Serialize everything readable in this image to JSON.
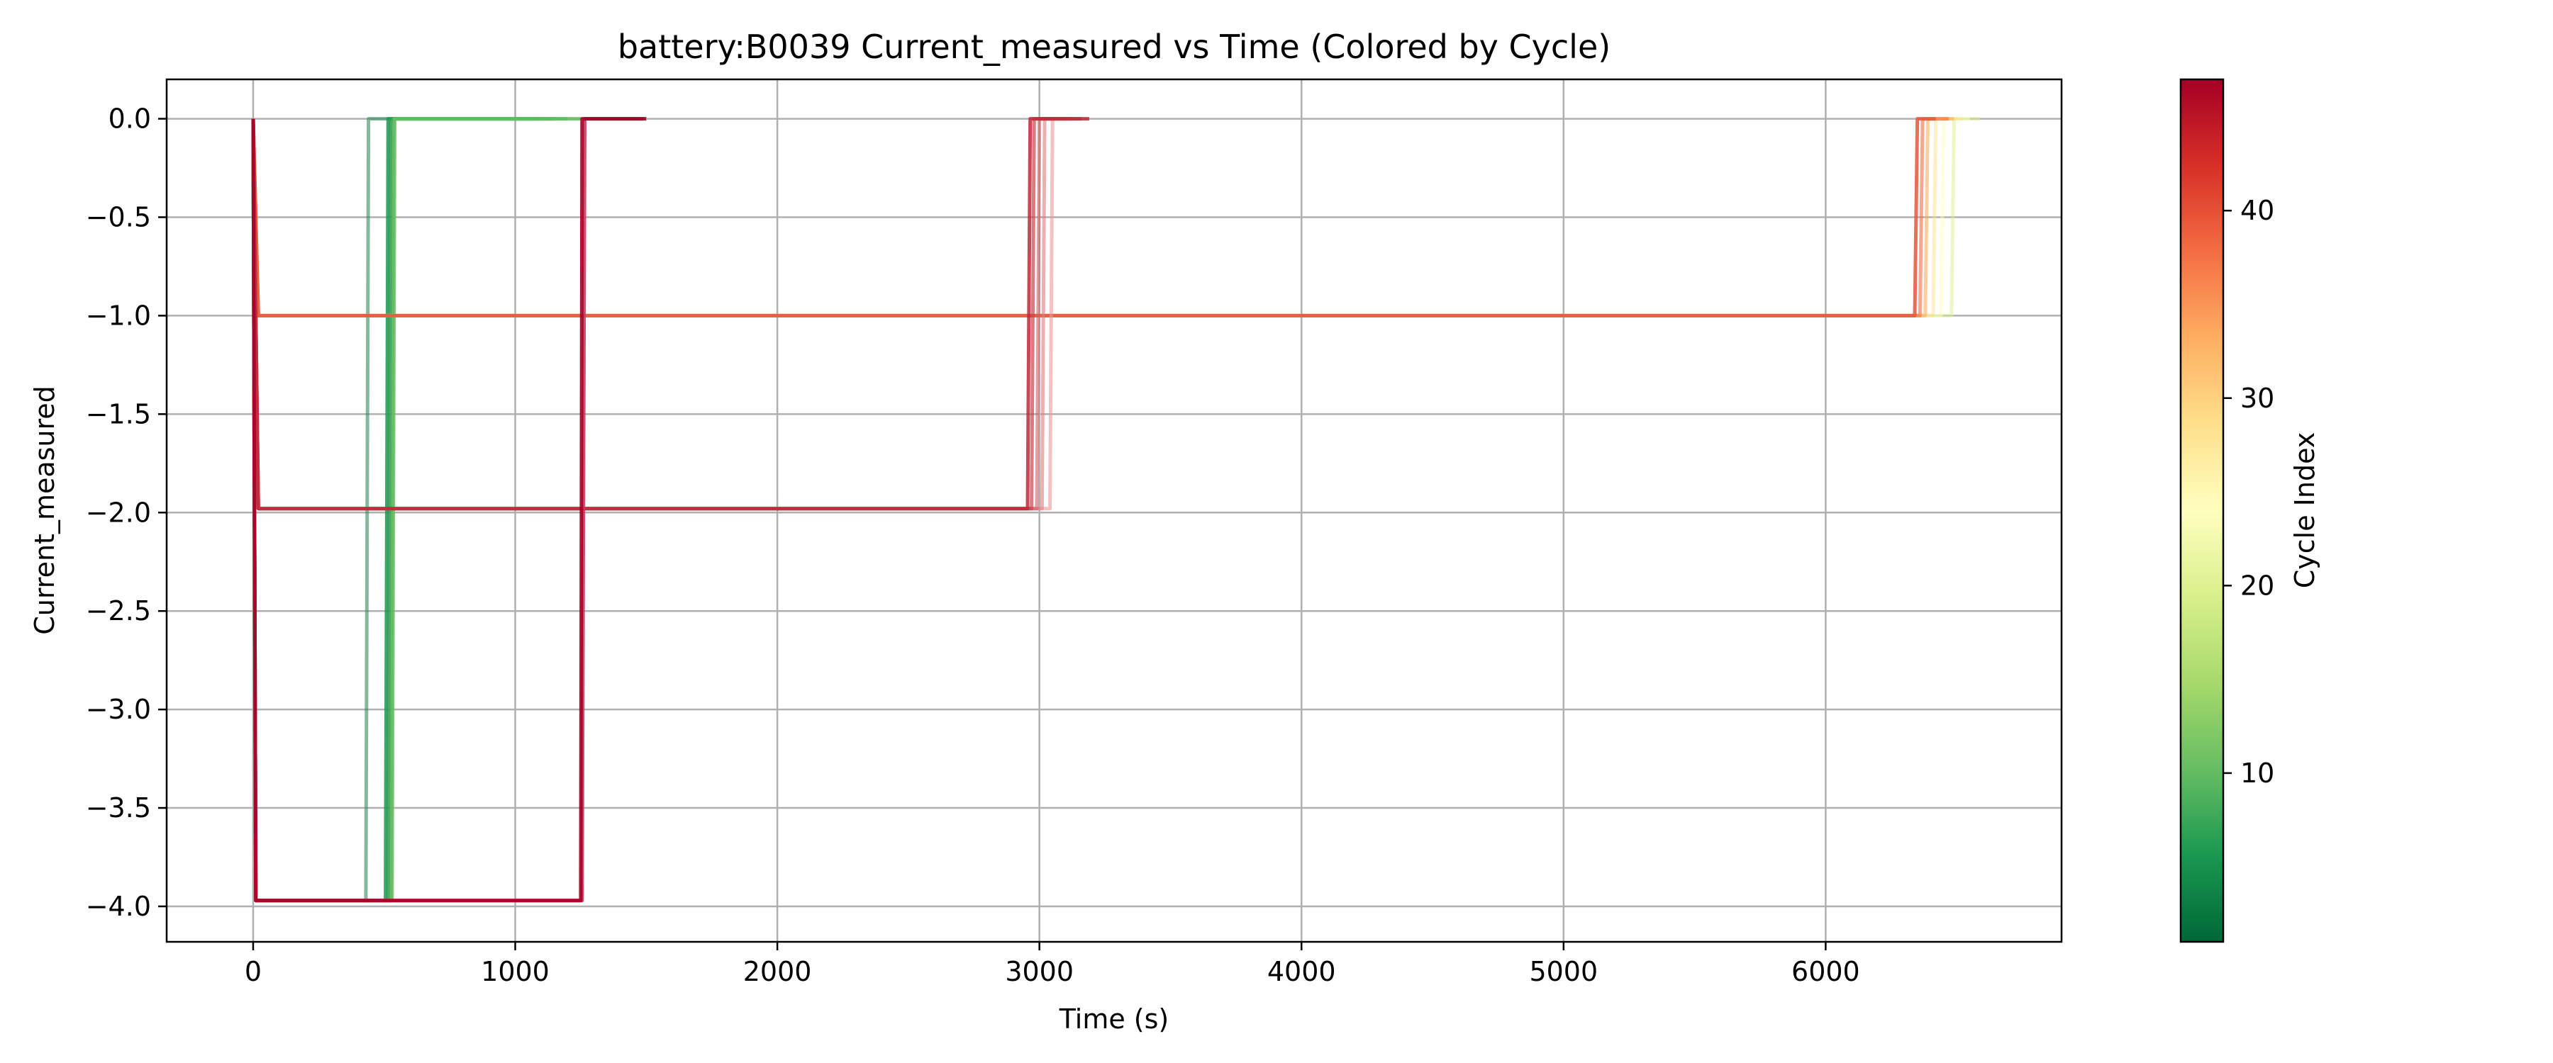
{
  "chart_data": {
    "type": "line",
    "title": "battery:B0039 Current_measured vs Time (Colored by Cycle)",
    "xlabel": "Time (s)",
    "ylabel": "Current_measured",
    "xlim": [
      -330,
      6900
    ],
    "ylim": [
      -4.18,
      0.2
    ],
    "xticks": [
      0,
      1000,
      2000,
      3000,
      4000,
      5000,
      6000
    ],
    "yticks": [
      0.0,
      -0.5,
      -1.0,
      -1.5,
      -2.0,
      -2.5,
      -3.0,
      -3.5,
      -4.0
    ],
    "grid": true,
    "colorbar": {
      "label": "Cycle Index",
      "range": [
        1,
        47
      ],
      "ticks": [
        10,
        20,
        30,
        40
      ],
      "colormap": "RdYlGn_r",
      "stops": [
        "#006837",
        "#1a9850",
        "#66bd63",
        "#a6d96a",
        "#d9ef8b",
        "#ffffbf",
        "#fee08b",
        "#fdae61",
        "#f46d43",
        "#d73027",
        "#a50026"
      ]
    },
    "series": [
      {
        "cycle": 1,
        "color": "#338a5c",
        "opacity": 0.6,
        "points": [
          [
            0,
            0.0
          ],
          [
            10,
            -3.97
          ],
          [
            430,
            -3.97
          ],
          [
            440,
            0.0
          ],
          [
            520,
            0.0
          ]
        ]
      },
      {
        "cycle": 3,
        "color": "#1a9850",
        "opacity": 0.85,
        "points": [
          [
            0,
            0.0
          ],
          [
            10,
            -3.97
          ],
          [
            505,
            -3.97
          ],
          [
            515,
            0.0
          ],
          [
            1100,
            0.0
          ]
        ]
      },
      {
        "cycle": 5,
        "color": "#2b9a4e",
        "opacity": 0.85,
        "points": [
          [
            0,
            0.0
          ],
          [
            10,
            -3.97
          ],
          [
            515,
            -3.97
          ],
          [
            525,
            0.0
          ],
          [
            1150,
            0.0
          ]
        ]
      },
      {
        "cycle": 8,
        "color": "#4cae5a",
        "opacity": 0.85,
        "points": [
          [
            0,
            0.0
          ],
          [
            10,
            -3.97
          ],
          [
            525,
            -3.97
          ],
          [
            535,
            0.0
          ],
          [
            1200,
            0.0
          ]
        ]
      },
      {
        "cycle": 11,
        "color": "#66bd63",
        "opacity": 0.85,
        "points": [
          [
            0,
            0.0
          ],
          [
            10,
            -3.97
          ],
          [
            530,
            -3.97
          ],
          [
            540,
            0.0
          ],
          [
            1250,
            0.0
          ]
        ]
      },
      {
        "cycle": 16,
        "color": "#d9ef8b",
        "opacity": 0.5,
        "points": [
          [
            0,
            0.0
          ],
          [
            20,
            -1.0
          ],
          [
            6480,
            -1.0
          ],
          [
            6490,
            0.0
          ],
          [
            6590,
            0.0
          ]
        ]
      },
      {
        "cycle": 22,
        "color": "#ffffbf",
        "opacity": 0.5,
        "points": [
          [
            0,
            0.0
          ],
          [
            20,
            -1.0
          ],
          [
            6440,
            -1.0
          ],
          [
            6450,
            0.0
          ],
          [
            6550,
            0.0
          ]
        ]
      },
      {
        "cycle": 28,
        "color": "#fee08b",
        "opacity": 0.5,
        "points": [
          [
            0,
            0.0
          ],
          [
            20,
            -1.0
          ],
          [
            6410,
            -1.0
          ],
          [
            6420,
            0.0
          ],
          [
            6520,
            0.0
          ]
        ]
      },
      {
        "cycle": 33,
        "color": "#fdae61",
        "opacity": 0.6,
        "points": [
          [
            0,
            0.0
          ],
          [
            20,
            -1.0
          ],
          [
            6380,
            -1.0
          ],
          [
            6390,
            0.0
          ],
          [
            6490,
            0.0
          ]
        ]
      },
      {
        "cycle": 37,
        "color": "#f46d43",
        "opacity": 0.6,
        "points": [
          [
            0,
            0.0
          ],
          [
            20,
            -1.0
          ],
          [
            6360,
            -1.0
          ],
          [
            6370,
            0.0
          ],
          [
            6470,
            0.0
          ]
        ]
      },
      {
        "cycle": 39,
        "color": "#e4573e",
        "opacity": 0.85,
        "points": [
          [
            0,
            0.0
          ],
          [
            20,
            -1.0
          ],
          [
            6340,
            -1.0
          ],
          [
            6350,
            0.0
          ],
          [
            6420,
            0.0
          ]
        ]
      },
      {
        "cycle": 41,
        "color": "#ec9a9a",
        "opacity": 0.6,
        "points": [
          [
            0,
            0.0
          ],
          [
            20,
            -1.98
          ],
          [
            3040,
            -1.98
          ],
          [
            3050,
            0.0
          ],
          [
            3090,
            0.0
          ]
        ]
      },
      {
        "cycle": 42,
        "color": "#e07c7c",
        "opacity": 0.6,
        "points": [
          [
            0,
            0.0
          ],
          [
            20,
            -1.98
          ],
          [
            3010,
            -1.98
          ],
          [
            3020,
            0.0
          ],
          [
            3100,
            0.0
          ]
        ]
      },
      {
        "cycle": 43,
        "color": "#d45f63",
        "opacity": 0.6,
        "points": [
          [
            0,
            0.0
          ],
          [
            20,
            -1.98
          ],
          [
            2990,
            -1.98
          ],
          [
            3000,
            0.0
          ],
          [
            3130,
            0.0
          ]
        ]
      },
      {
        "cycle": 44,
        "color": "#c9434c",
        "opacity": 0.7,
        "points": [
          [
            0,
            0.0
          ],
          [
            20,
            -1.98
          ],
          [
            2970,
            -1.98
          ],
          [
            2980,
            0.0
          ],
          [
            3160,
            0.0
          ]
        ]
      },
      {
        "cycle": 45,
        "color": "#c0273a",
        "opacity": 0.85,
        "points": [
          [
            0,
            0.0
          ],
          [
            20,
            -1.98
          ],
          [
            2955,
            -1.98
          ],
          [
            2965,
            0.0
          ],
          [
            3190,
            0.0
          ]
        ]
      },
      {
        "cycle": 46,
        "color": "#c53b5f",
        "opacity": 0.9,
        "points": [
          [
            0,
            0.0
          ],
          [
            10,
            -3.97
          ],
          [
            1255,
            -3.97
          ],
          [
            1265,
            0.0
          ],
          [
            1490,
            0.0
          ]
        ]
      },
      {
        "cycle": 47,
        "color": "#a50026",
        "opacity": 0.9,
        "points": [
          [
            0,
            0.0
          ],
          [
            10,
            -3.97
          ],
          [
            1250,
            -3.97
          ],
          [
            1255,
            0.0
          ],
          [
            1500,
            0.0
          ]
        ]
      }
    ]
  }
}
